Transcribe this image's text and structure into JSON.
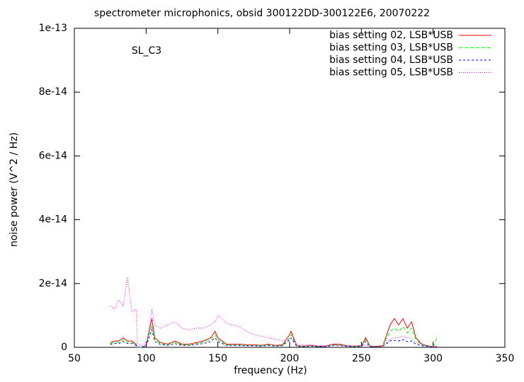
{
  "chart_data": {
    "type": "line",
    "title": "spectrometer microphonics, obsid 300122DD-300122E6, 20070222",
    "xlabel": "frequency (Hz)",
    "ylabel": "noise power (V^2 / Hz)",
    "annotation": "SL_C3",
    "xlim": [
      50,
      350
    ],
    "xticks": [
      50,
      100,
      150,
      200,
      250,
      300,
      350
    ],
    "ylim": [
      0,
      1e-13
    ],
    "yticks": [
      0,
      2e-14,
      4e-14,
      6e-14,
      8e-14,
      1e-13
    ],
    "legend": "top-right",
    "x": [
      75,
      78,
      81,
      84,
      87,
      90,
      93,
      94,
      96,
      100,
      102,
      104,
      106,
      110,
      115,
      120,
      125,
      130,
      135,
      140,
      145,
      148,
      150,
      153,
      156,
      160,
      165,
      170,
      175,
      180,
      185,
      190,
      195,
      200,
      201,
      205,
      210,
      215,
      220,
      225,
      230,
      235,
      240,
      245,
      250,
      253,
      256,
      260,
      265,
      270,
      273,
      276,
      279,
      282,
      285,
      288,
      292,
      296,
      300,
      303
    ],
    "series": [
      {
        "name": "bias setting 02, LSB*USB",
        "color": "#ff0000",
        "dash": "none",
        "values": [
          1.5e-15,
          2e-15,
          2e-15,
          3e-15,
          2e-15,
          2e-15,
          1e-15,
          0,
          0,
          5e-16,
          5e-15,
          9e-15,
          3e-15,
          1.5e-15,
          1e-15,
          2e-15,
          1e-15,
          1e-15,
          1.5e-15,
          2e-15,
          3e-15,
          5e-15,
          3e-15,
          2e-15,
          1e-15,
          1e-15,
          1e-15,
          8e-16,
          8e-16,
          6e-16,
          1e-15,
          6e-16,
          8e-16,
          4e-15,
          5e-15,
          5e-16,
          4e-16,
          6e-16,
          3e-16,
          4e-16,
          1e-15,
          1e-15,
          5e-16,
          4e-16,
          5e-16,
          3e-15,
          4e-16,
          3e-16,
          5e-16,
          7e-15,
          9e-15,
          7e-15,
          9e-15,
          6e-15,
          8e-15,
          3e-15,
          1e-15,
          5e-16,
          2e-16,
          2e-16
        ]
      },
      {
        "name": "bias setting 03, LSB*USB",
        "color": "#00ff00",
        "dash": "5,3",
        "values": [
          1.2e-15,
          1.6e-15,
          1.6e-15,
          2.4e-15,
          1.6e-15,
          1.6e-15,
          8e-16,
          0,
          0,
          4e-16,
          4e-15,
          7e-15,
          2.4e-15,
          1.2e-15,
          8e-16,
          1.6e-15,
          8e-16,
          8e-16,
          1.2e-15,
          1.6e-15,
          2.4e-15,
          4e-15,
          2.4e-15,
          1.6e-15,
          8e-16,
          8e-16,
          8e-16,
          6e-16,
          6e-16,
          5e-16,
          8e-16,
          5e-16,
          6e-16,
          3e-15,
          4e-15,
          4e-16,
          3e-16,
          5e-16,
          2e-16,
          3e-16,
          8e-16,
          8e-16,
          4e-16,
          3e-16,
          4e-16,
          2.4e-15,
          3e-16,
          2e-16,
          4e-16,
          5e-15,
          6e-15,
          5e-15,
          6.5e-15,
          4.5e-15,
          6e-15,
          2.4e-15,
          8e-16,
          4e-16,
          2e-16,
          3.5e-15
        ]
      },
      {
        "name": "bias setting 04, LSB*USB",
        "color": "#0000ff",
        "dash": "3,3",
        "values": [
          9e-16,
          1.2e-15,
          1.2e-15,
          1.8e-15,
          1.2e-15,
          1.2e-15,
          6e-16,
          0,
          0,
          3e-16,
          3e-15,
          5.5e-15,
          1.8e-15,
          9e-16,
          6e-16,
          1.2e-15,
          6e-16,
          6e-16,
          9e-16,
          1.2e-15,
          1.8e-15,
          3e-15,
          1.8e-15,
          1.2e-15,
          6e-16,
          6e-16,
          6e-16,
          5e-16,
          5e-16,
          4e-16,
          6e-16,
          4e-16,
          5e-16,
          2.4e-15,
          3e-15,
          3e-16,
          2e-16,
          4e-16,
          2e-16,
          2e-16,
          6e-16,
          6e-16,
          3e-16,
          2e-16,
          3e-16,
          1.8e-15,
          2e-16,
          2e-16,
          3e-16,
          2e-15,
          2.2e-15,
          2e-15,
          2.4e-15,
          1.8e-15,
          2e-15,
          1e-15,
          5e-16,
          3e-16,
          1e-16,
          1e-16
        ]
      },
      {
        "name": "bias setting 05, LSB*USB",
        "color": "#ff00ff",
        "dash": "1,2",
        "values": [
          1.3e-14,
          1.2e-14,
          1.5e-14,
          1.3e-14,
          2.2e-14,
          1.1e-14,
          1.2e-14,
          1e-15,
          5e-16,
          1e-15,
          5e-15,
          1.2e-14,
          7e-15,
          6e-15,
          7e-15,
          8e-15,
          6e-15,
          5.5e-15,
          6e-15,
          6e-15,
          7e-15,
          8e-15,
          1e-14,
          9e-15,
          7.5e-15,
          7e-15,
          6.5e-15,
          5e-15,
          4e-15,
          3.5e-15,
          3e-15,
          2.5e-15,
          2e-15,
          2.5e-15,
          3e-15,
          1e-15,
          8e-16,
          8e-16,
          5e-16,
          5e-16,
          8e-16,
          6e-16,
          5e-16,
          4e-16,
          5e-16,
          8e-16,
          3e-16,
          2e-16,
          3e-16,
          2.5e-15,
          3e-15,
          3e-15,
          3.5e-15,
          3e-15,
          3e-15,
          1.5e-15,
          1e-15,
          5e-16,
          2e-16,
          2e-16
        ]
      }
    ]
  }
}
